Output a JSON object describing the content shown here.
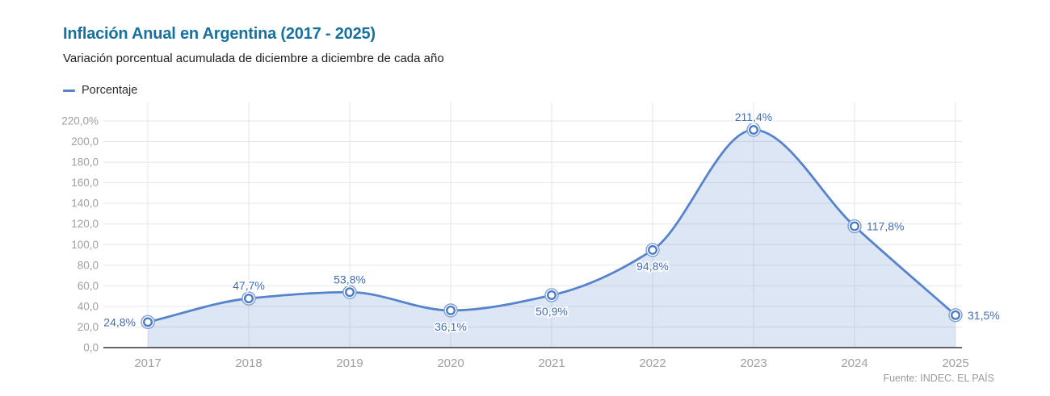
{
  "header": {
    "title": "Inflación Anual en Argentina (2017 - 2025)",
    "subtitle": "Variación porcentual acumulada de diciembre a diciembre de cada año"
  },
  "legend": {
    "label": "Porcentaje"
  },
  "source": "Fuente: INDEC. EL PAÍS",
  "colors": {
    "title": "#15719f",
    "line": "#5584cd",
    "area_fill": "rgba(85,132,205,0.20)",
    "point_label": "#3f6db8",
    "axis_label": "#a0a0a0",
    "grid": "#e6e6e6",
    "baseline": "#333333",
    "marker_outer": "#7d9fd8",
    "marker_inner": "#4d7cc7",
    "marker_fill": "#ffffff",
    "source": "#9b9b9b"
  },
  "chart_data": {
    "type": "area",
    "title": "Inflación Anual en Argentina (2017 - 2025)",
    "subtitle": "Variación porcentual acumulada de diciembre a diciembre de cada año",
    "series_name": "Porcentaje",
    "xlabel": "",
    "ylabel": "Porcentaje",
    "ylim": [
      0,
      220
    ],
    "grid": true,
    "legend_position": "top-left",
    "categories": [
      "2017",
      "2018",
      "2019",
      "2020",
      "2021",
      "2022",
      "2023",
      "2024",
      "2025"
    ],
    "values": [
      24.8,
      47.7,
      53.8,
      36.1,
      50.9,
      94.8,
      211.4,
      117.8,
      31.5
    ],
    "points": [
      {
        "year": "2017",
        "value": 24.8,
        "label": "24,8%",
        "label_pos": "left"
      },
      {
        "year": "2018",
        "value": 47.7,
        "label": "47,7%",
        "label_pos": "above"
      },
      {
        "year": "2019",
        "value": 53.8,
        "label": "53,8%",
        "label_pos": "above"
      },
      {
        "year": "2020",
        "value": 36.1,
        "label": "36,1%",
        "label_pos": "below"
      },
      {
        "year": "2021",
        "value": 50.9,
        "label": "50,9%",
        "label_pos": "below"
      },
      {
        "year": "2022",
        "value": 94.8,
        "label": "94,8%",
        "label_pos": "below"
      },
      {
        "year": "2023",
        "value": 211.4,
        "label": "211,4%",
        "label_pos": "above"
      },
      {
        "year": "2024",
        "value": 117.8,
        "label": "117,8%",
        "label_pos": "right"
      },
      {
        "year": "2025",
        "value": 31.5,
        "label": "31,5%",
        "label_pos": "right"
      }
    ],
    "yticks": [
      {
        "value": 0,
        "label": "0,0"
      },
      {
        "value": 20,
        "label": "20,0"
      },
      {
        "value": 40,
        "label": "40,0"
      },
      {
        "value": 60,
        "label": "60,0"
      },
      {
        "value": 80,
        "label": "80,0"
      },
      {
        "value": 100,
        "label": "100,0"
      },
      {
        "value": 120,
        "label": "120,0"
      },
      {
        "value": 140,
        "label": "140,0"
      },
      {
        "value": 160,
        "label": "160,0"
      },
      {
        "value": 180,
        "label": "180,0"
      },
      {
        "value": 200,
        "label": "200,0"
      },
      {
        "value": 220,
        "label": "220,0%"
      }
    ]
  }
}
